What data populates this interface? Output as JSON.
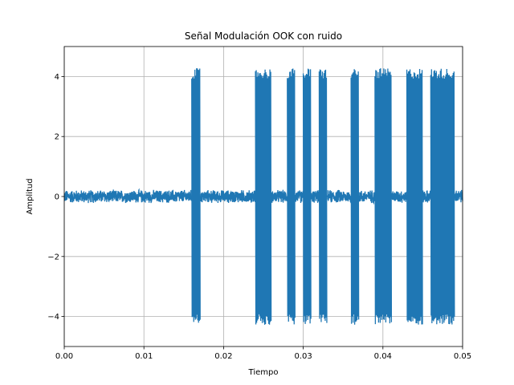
{
  "chart_data": {
    "type": "line",
    "title": "Señal Modulación OOK con ruido",
    "xlabel": "Tiempo",
    "ylabel": "Amplitud",
    "xlim": [
      0.0,
      0.05
    ],
    "ylim": [
      -5,
      5
    ],
    "grid": true,
    "x_ticks": [
      "0.00",
      "0.01",
      "0.02",
      "0.03",
      "0.04",
      "0.05"
    ],
    "y_ticks": [
      "−4",
      "−2",
      "0",
      "2",
      "4"
    ],
    "y_tick_values": [
      -4,
      -2,
      0,
      2,
      4
    ],
    "x_tick_values": [
      0.0,
      0.01,
      0.02,
      0.03,
      0.04,
      0.05
    ],
    "series": [
      {
        "color": "#1f77b4",
        "noise_amplitude": 0.2,
        "carrier_amplitude": 4.1,
        "on_intervals": [
          [
            0.016,
            0.0171
          ],
          [
            0.024,
            0.026
          ],
          [
            0.028,
            0.029
          ],
          [
            0.03,
            0.031
          ],
          [
            0.032,
            0.033
          ],
          [
            0.036,
            0.037
          ],
          [
            0.039,
            0.0411
          ],
          [
            0.043,
            0.045
          ],
          [
            0.046,
            0.049
          ]
        ]
      }
    ]
  }
}
